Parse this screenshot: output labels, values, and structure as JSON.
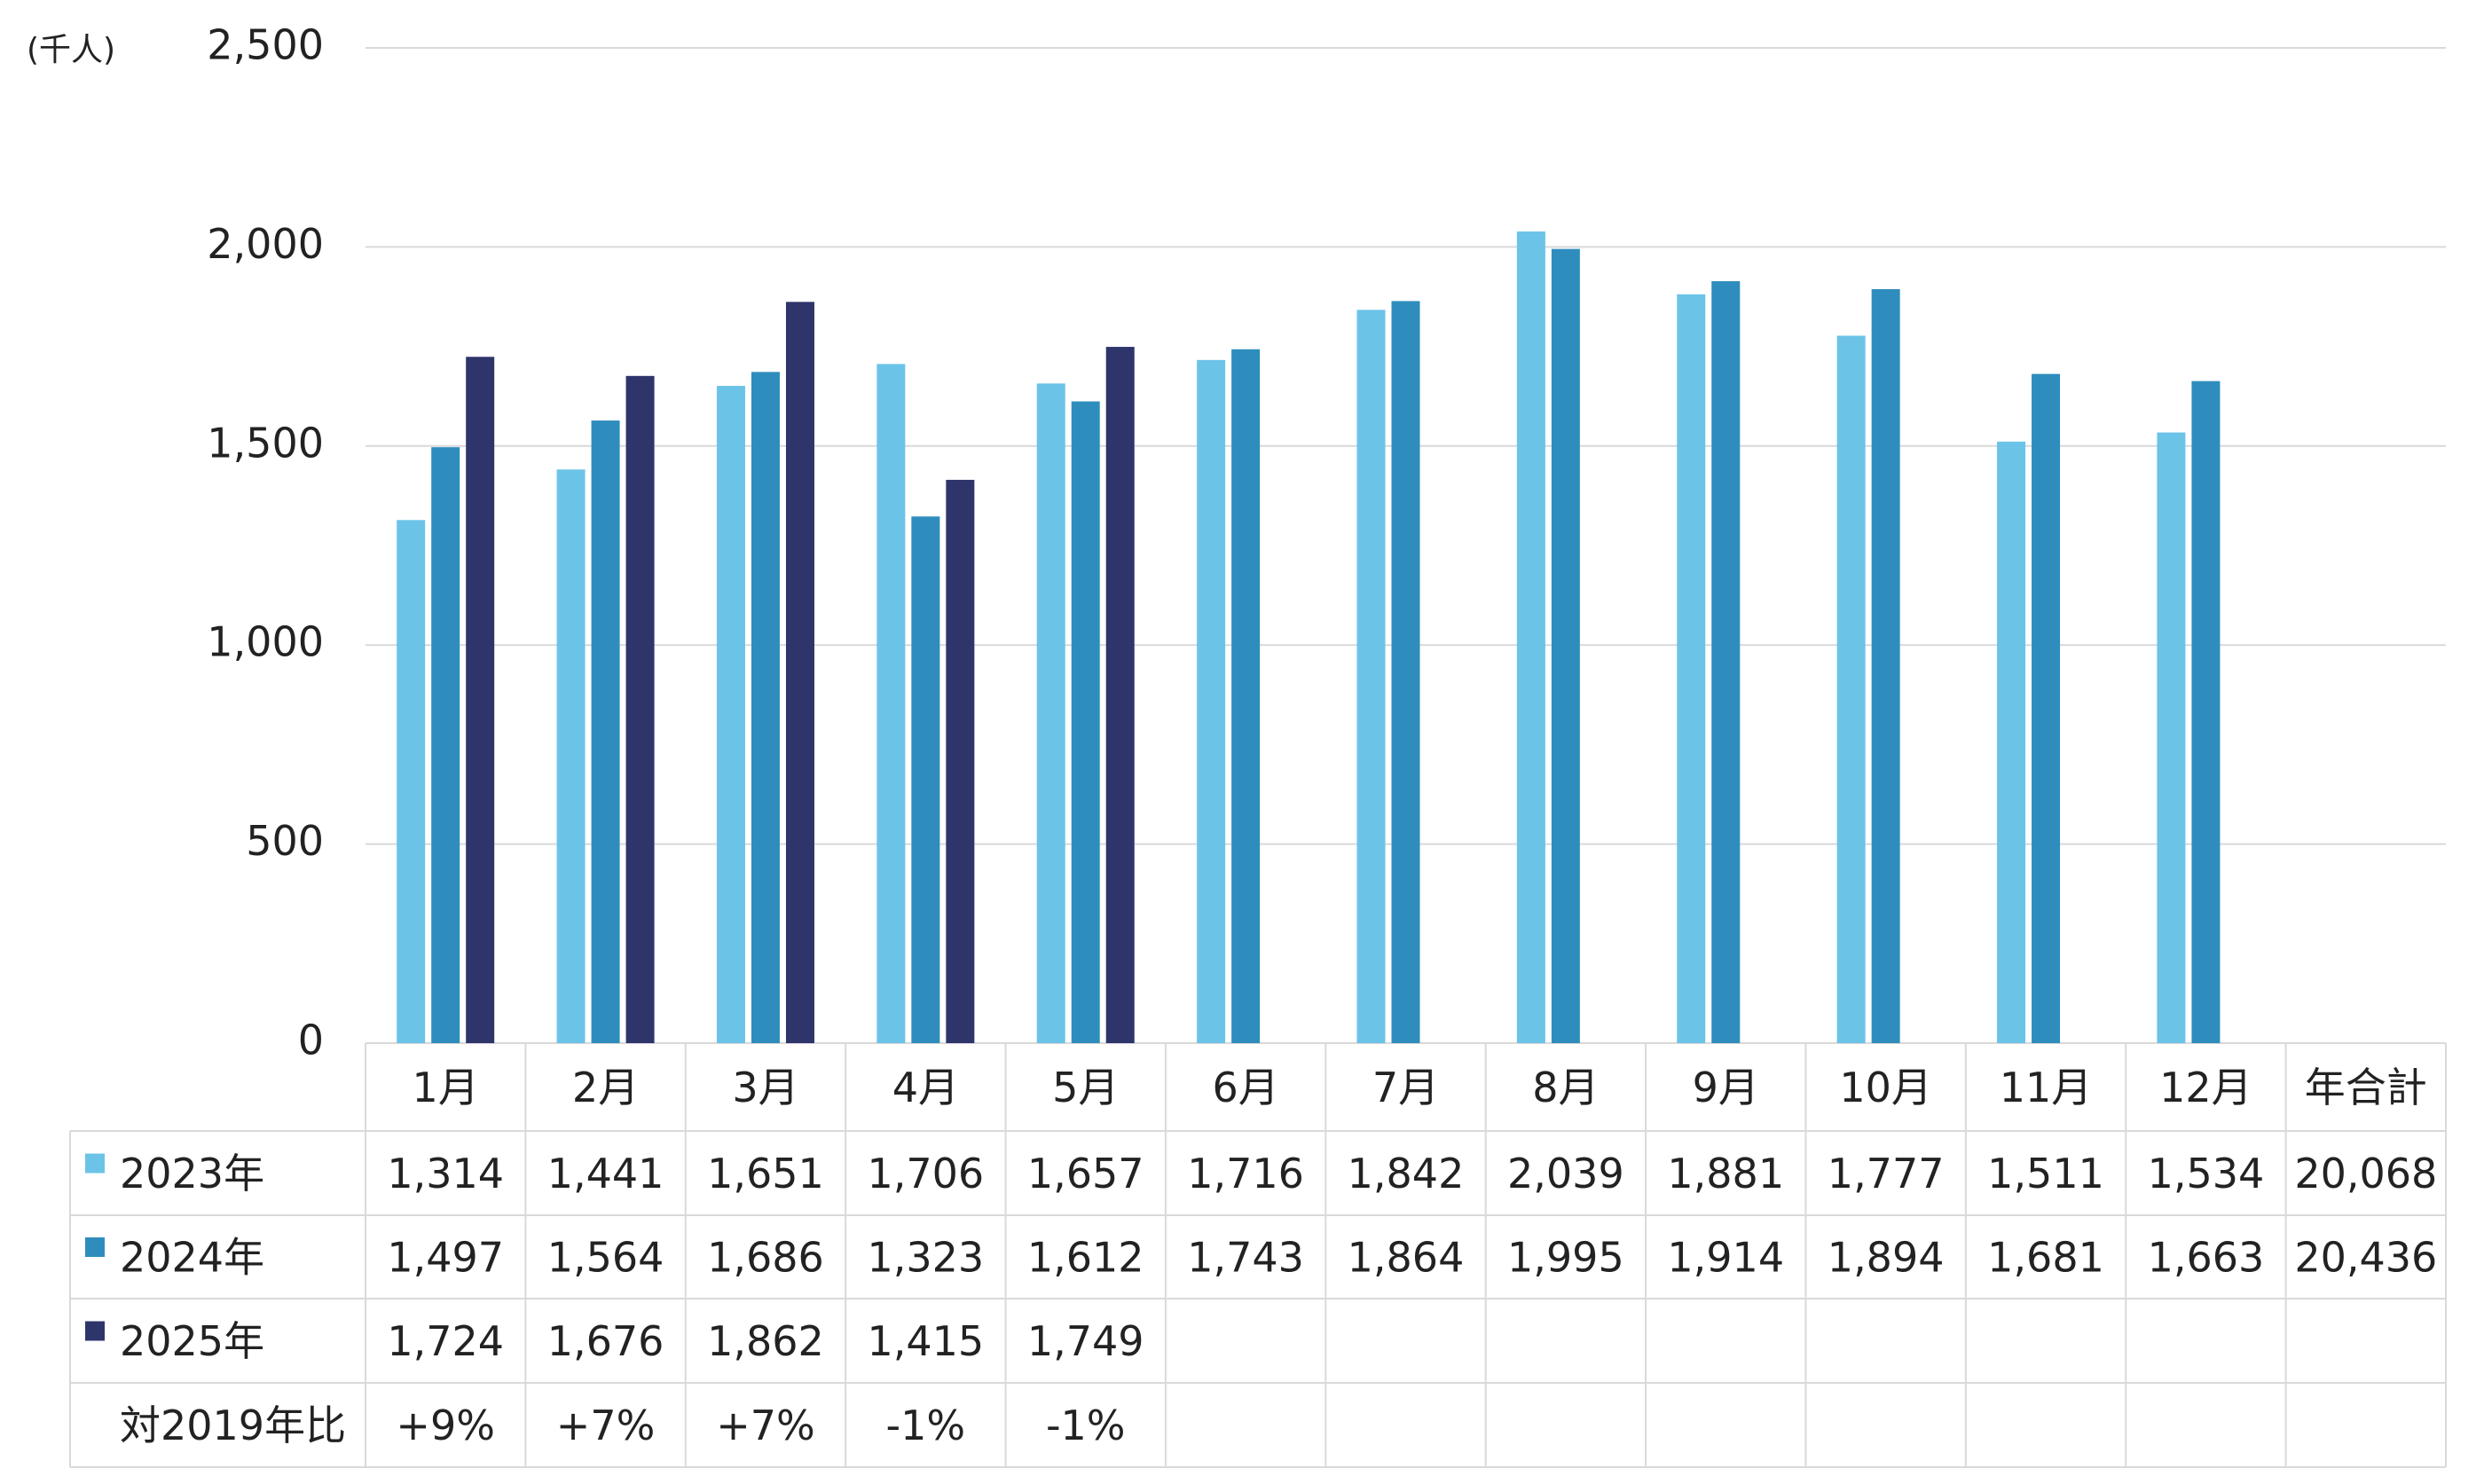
{
  "chart_data": {
    "type": "bar",
    "unit_label": "(千人)",
    "categories": [
      "1月",
      "2月",
      "3月",
      "4月",
      "5月",
      "6月",
      "7月",
      "8月",
      "9月",
      "10月",
      "11月",
      "12月"
    ],
    "total_header": "年合計",
    "series": [
      {
        "name": "2023年",
        "color": "#6cc3e8",
        "values": [
          1314,
          1441,
          1651,
          1706,
          1657,
          1716,
          1842,
          2039,
          1881,
          1777,
          1511,
          1534
        ],
        "value_labels": [
          "1,314",
          "1,441",
          "1,651",
          "1,706",
          "1,657",
          "1,716",
          "1,842",
          "2,039",
          "1,881",
          "1,777",
          "1,511",
          "1,534"
        ],
        "total": 20068,
        "total_label": "20,068"
      },
      {
        "name": "2024年",
        "color": "#2e8dbd",
        "values": [
          1497,
          1564,
          1686,
          1323,
          1612,
          1743,
          1864,
          1995,
          1914,
          1894,
          1681,
          1663
        ],
        "value_labels": [
          "1,497",
          "1,564",
          "1,686",
          "1,323",
          "1,612",
          "1,743",
          "1,864",
          "1,995",
          "1,914",
          "1,894",
          "1,681",
          "1,663"
        ],
        "total": 20436,
        "total_label": "20,436"
      },
      {
        "name": "2025年",
        "color": "#2e356b",
        "values": [
          1724,
          1676,
          1862,
          1415,
          1749,
          null,
          null,
          null,
          null,
          null,
          null,
          null
        ],
        "value_labels": [
          "1,724",
          "1,676",
          "1,862",
          "1,415",
          "1,749",
          null,
          null,
          null,
          null,
          null,
          null,
          null
        ]
      }
    ],
    "ratio_row": {
      "name": "対2019年比",
      "values": [
        9,
        7,
        7,
        -1,
        -1
      ],
      "value_labels": [
        "+9%",
        "+7%",
        "+7%",
        "-1%",
        "-1%"
      ]
    },
    "ylim": [
      0,
      2500
    ],
    "yticks": [
      0,
      500,
      {
        "value": 1000,
        "label": "1,000"
      },
      {
        "value": 1500,
        "label": "1,500"
      },
      {
        "value": 2000,
        "label": "2,000"
      },
      {
        "value": 2500,
        "label": "2,500"
      }
    ],
    "grid": true
  }
}
